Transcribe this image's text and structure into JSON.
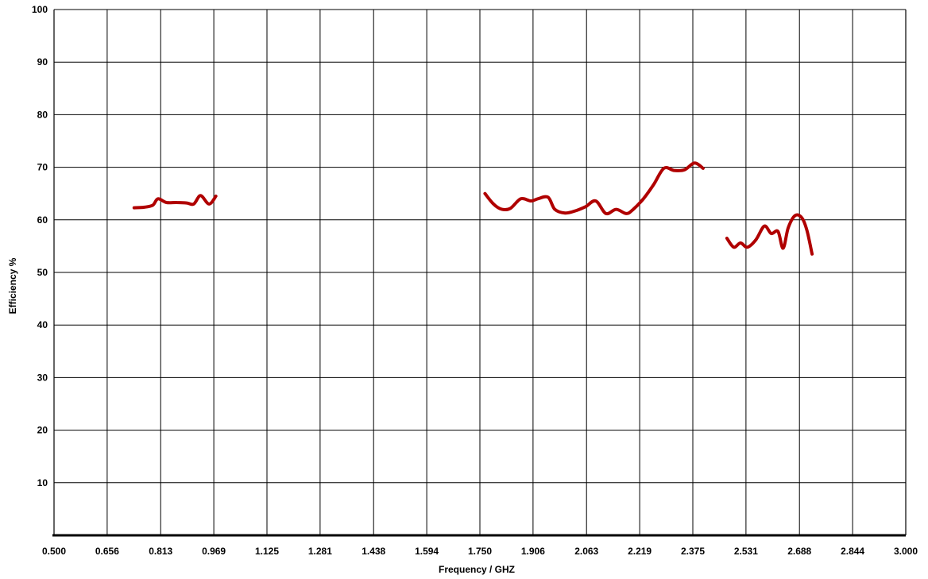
{
  "chart_data": {
    "type": "line",
    "title": "",
    "xlabel": "Frequency / GHZ",
    "ylabel": "Efficiency %",
    "xlim": [
      0.5,
      3.0
    ],
    "ylim": [
      0,
      100
    ],
    "x_ticks": [
      0.5,
      0.656,
      0.813,
      0.969,
      1.125,
      1.281,
      1.438,
      1.594,
      1.75,
      1.906,
      2.063,
      2.219,
      2.375,
      2.531,
      2.688,
      2.844,
      3.0
    ],
    "x_tick_labels": [
      "0.500",
      "0.656",
      "0.813",
      "0.969",
      "1.125",
      "1.281",
      "1.438",
      "1.594",
      "1.750",
      "1.906",
      "2.063",
      "2.219",
      "2.375",
      "2.531",
      "2.688",
      "2.844",
      "3.000"
    ],
    "y_ticks": [
      10,
      20,
      30,
      40,
      50,
      60,
      70,
      80,
      90,
      100
    ],
    "y_tick_labels": [
      "10",
      "20",
      "30",
      "40",
      "50",
      "60",
      "70",
      "80",
      "90",
      "100"
    ],
    "grid": true,
    "legend": "none",
    "color": "#b00000",
    "series": [
      {
        "x": [
          0.735,
          0.765,
          0.79,
          0.805,
          0.83,
          0.86,
          0.89,
          0.91,
          0.93,
          0.955,
          0.975
        ],
        "y": [
          62.3,
          62.4,
          62.8,
          64.0,
          63.3,
          63.3,
          63.2,
          63.0,
          64.6,
          63.0,
          64.5
        ]
      },
      {
        "x": [
          1.765,
          1.79,
          1.815,
          1.84,
          1.87,
          1.9,
          1.92,
          1.95,
          1.97,
          2.0,
          2.03,
          2.06,
          2.09,
          2.12,
          2.15,
          2.18,
          2.2,
          2.23,
          2.26,
          2.29,
          2.32,
          2.35,
          2.38,
          2.405
        ],
        "y": [
          65.0,
          63.0,
          62.0,
          62.2,
          64.0,
          63.6,
          64.0,
          64.3,
          62.0,
          61.3,
          61.7,
          62.5,
          63.6,
          61.2,
          62.0,
          61.2,
          62.0,
          64.0,
          66.7,
          69.8,
          69.4,
          69.5,
          70.8,
          69.8
        ]
      },
      {
        "x": [
          2.475,
          2.495,
          2.515,
          2.535,
          2.56,
          2.585,
          2.605,
          2.625,
          2.64,
          2.655,
          2.675,
          2.695,
          2.71,
          2.725
        ],
        "y": [
          56.5,
          54.8,
          55.6,
          54.8,
          56.2,
          58.8,
          57.4,
          57.8,
          54.6,
          58.5,
          60.8,
          60.4,
          58.0,
          53.5
        ]
      }
    ]
  }
}
